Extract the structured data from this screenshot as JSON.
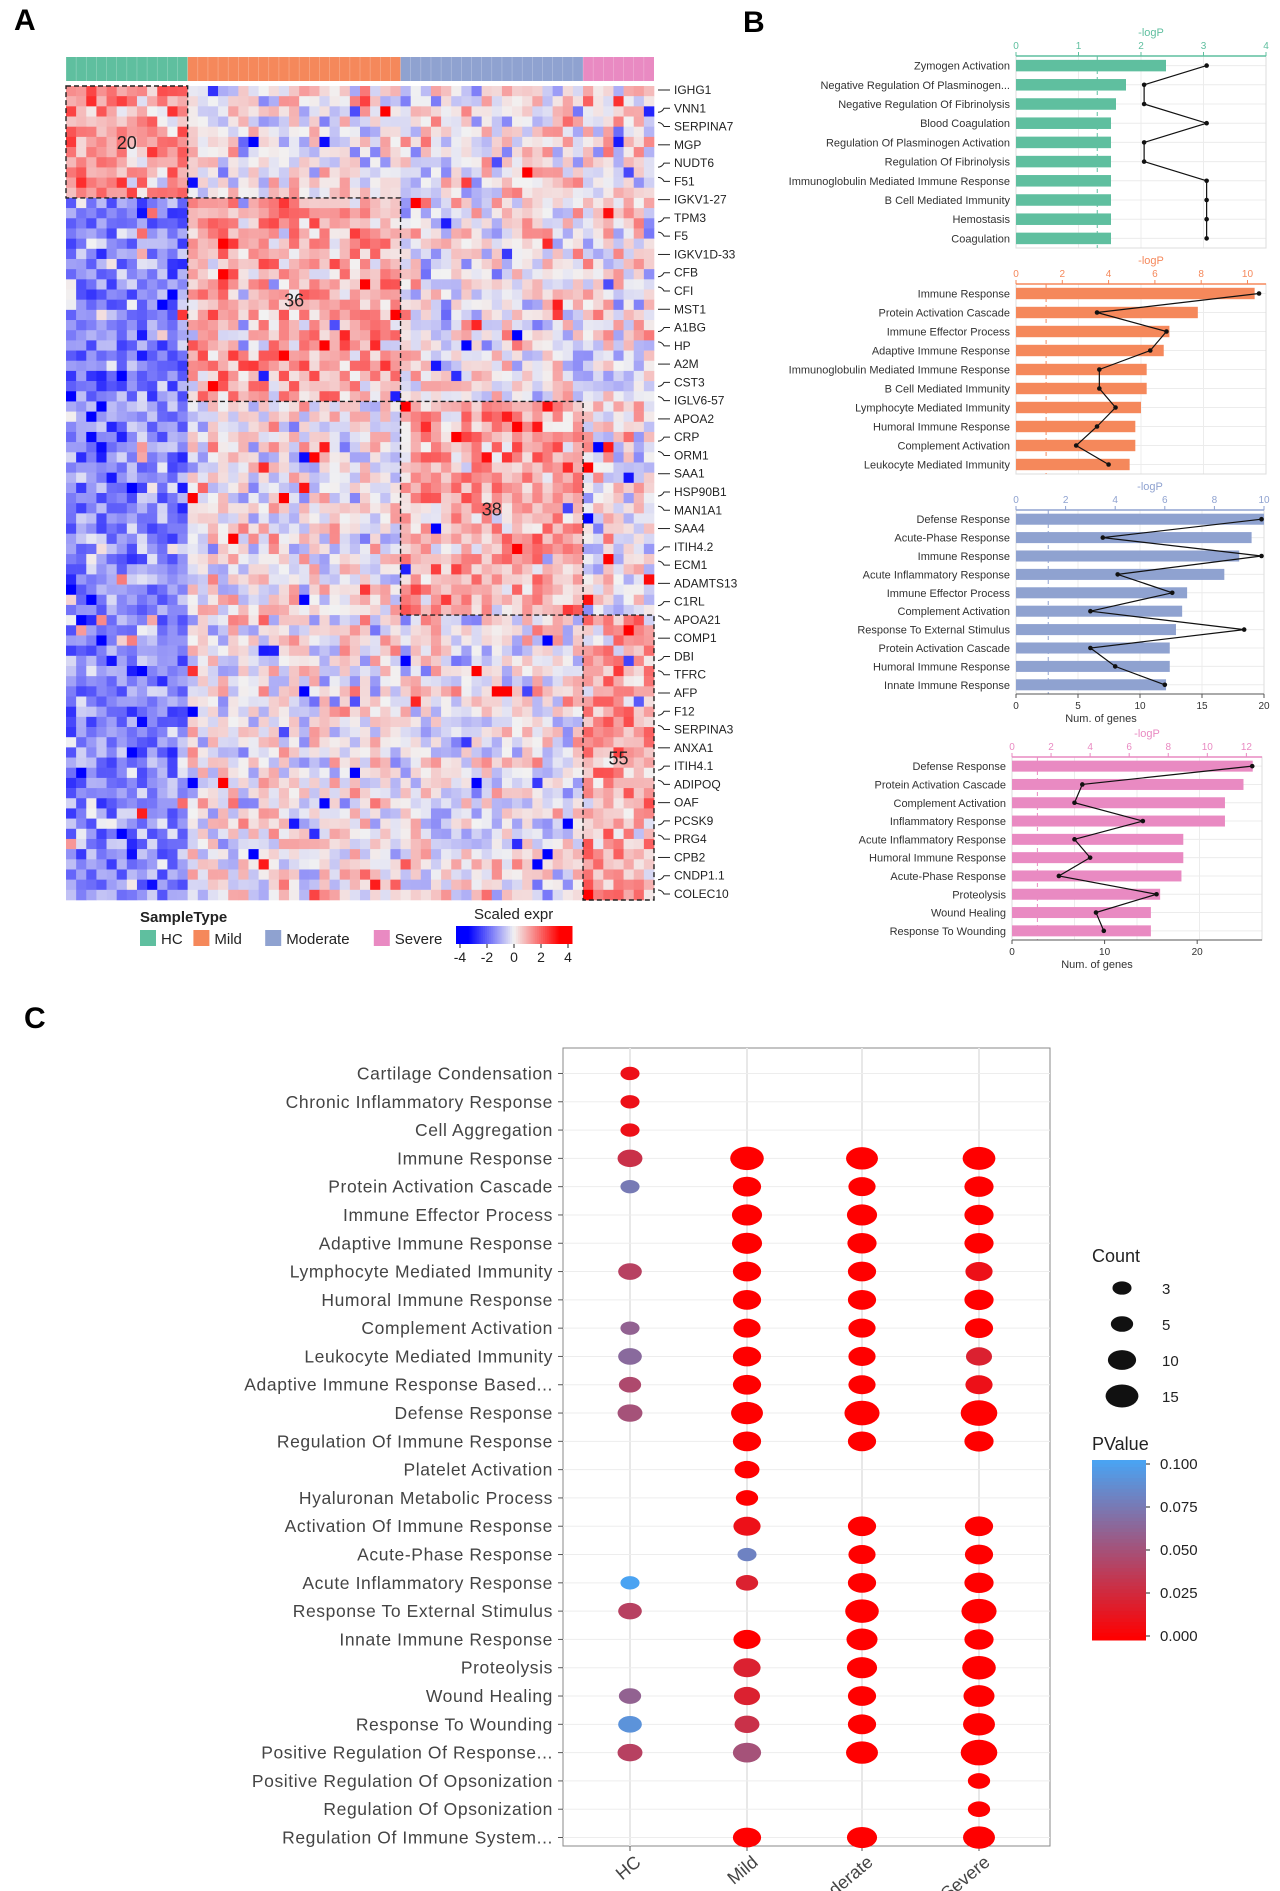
{
  "panels": {
    "a": "A",
    "b": "B",
    "c": "C"
  },
  "colors": {
    "HC": "#5fbf9f",
    "Mild": "#f5885b",
    "Moderate": "#8fa2d0",
    "Severe": "#e98ac2",
    "low": "#0000ff",
    "mid": "#f2f2f2",
    "high": "#ff0000",
    "p_low": "#ff0000",
    "p_high": "#4aa3f2"
  },
  "heatmap": {
    "sample_groups": [
      {
        "name": "HC",
        "n": 12
      },
      {
        "name": "Mild",
        "n": 21
      },
      {
        "name": "Moderate",
        "n": 18
      },
      {
        "name": "Severe",
        "n": 7
      }
    ],
    "n_genes": 80,
    "clusters": [
      {
        "label": "20",
        "groups": [
          "HC"
        ],
        "gene_rows": [
          0,
          11
        ]
      },
      {
        "label": "36",
        "groups": [
          "Mild"
        ],
        "gene_rows": [
          11,
          31
        ]
      },
      {
        "label": "38",
        "groups": [
          "Moderate"
        ],
        "gene_rows": [
          31,
          52
        ]
      },
      {
        "label": "55",
        "groups": [
          "Severe"
        ],
        "gene_rows": [
          52,
          80
        ]
      }
    ],
    "gene_labels": [
      "IGHG1",
      "VNN1",
      "SERPINA7",
      "MGP",
      "NUDT6",
      "F51",
      "IGKV1-27",
      "TPM3",
      "F5",
      "IGKV1D-33",
      "CFB",
      "CFI",
      "MST1",
      "A1BG",
      "HP",
      "A2M",
      "CST3",
      "IGLV6-57",
      "APOA2",
      "CRP",
      "ORM1",
      "SAA1",
      "HSP90B1",
      "MAN1A1",
      "SAA4",
      "ITIH4.2",
      "ECM1",
      "ADAMTS13",
      "C1RL",
      "APOA21",
      "COMP1",
      "DBI",
      "TFRC",
      "AFP",
      "F12",
      "SERPINA3",
      "ANXA1",
      "ITIH4.1",
      "ADIPOQ",
      "OAF",
      "PCSK9",
      "PRG4",
      "CPB2",
      "CNDP1.1",
      "COLEC10"
    ],
    "legend_sample_title": "SampleType",
    "legend_expr_title": "Scaled expr",
    "legend_expr_ticks": [
      "-4",
      "-2",
      "0",
      "2",
      "4"
    ]
  },
  "chart_data": [
    {
      "type": "bar",
      "group": "HC",
      "top_axis_label": "-logP",
      "top_ticks": [
        0,
        1,
        2,
        3,
        4
      ],
      "xlim_genes": [
        0,
        5
      ],
      "categories": [
        "Zymogen Activation",
        "Negative Regulation Of Plasminogen...",
        "Negative Regulation Of Fibrinolysis",
        "Blood Coagulation",
        "Regulation Of Plasminogen Activation",
        "Regulation Of Fibrinolysis",
        "Immunoglobulin Mediated Immune Response",
        "B Cell Mediated Immunity",
        "Hemostasis",
        "Coagulation"
      ],
      "genes": [
        3,
        2.2,
        2,
        1.9,
        1.9,
        1.9,
        1.9,
        1.9,
        1.9,
        1.9
      ],
      "logp": [
        3.05,
        2.05,
        2.05,
        3.05,
        2.05,
        2.05,
        3.05,
        3.05,
        3.05,
        3.05
      ]
    },
    {
      "type": "bar",
      "group": "Mild",
      "top_axis_label": "-logP",
      "top_ticks": [
        0,
        2,
        4,
        6,
        8,
        10
      ],
      "xlim_genes": [
        0,
        22
      ],
      "categories": [
        "Immune Response",
        "Protein Activation Cascade",
        "Immune Effector Process",
        "Adaptive Immune Response",
        "Immunoglobulin Mediated Immune Response",
        "B Cell Mediated Immunity",
        "Lymphocyte Mediated Immunity",
        "Humoral Immune Response",
        "Complement Activation",
        "Leukocyte Mediated Immunity"
      ],
      "genes": [
        21,
        16,
        13.5,
        13,
        11.5,
        11.5,
        11,
        10.5,
        10.5,
        10
      ],
      "logp": [
        10.5,
        3.5,
        6.5,
        5.8,
        3.6,
        3.6,
        4.3,
        3.5,
        2.6,
        4.0
      ]
    },
    {
      "type": "bar",
      "group": "Moderate",
      "top_axis_label": "-logP",
      "top_ticks": [
        0,
        2,
        4,
        6,
        8,
        10
      ],
      "x_ticks": [
        0,
        5,
        10,
        15,
        20
      ],
      "xlabel": "Num. of genes",
      "xlim_genes": [
        0,
        20
      ],
      "categories": [
        "Defense Response",
        "Acute-Phase Response",
        "Immune Response",
        "Acute Inflammatory Response",
        "Immune Effector Process",
        "Complement Activation",
        "Response To External Stimulus",
        "Protein Activation Cascade",
        "Humoral Immune Response",
        "Innate Immune Response"
      ],
      "genes": [
        20,
        19,
        18,
        16.8,
        13.8,
        13.4,
        12.9,
        12.4,
        12.4,
        12.1
      ],
      "logp": [
        9.9,
        3.5,
        9.9,
        4.1,
        6.3,
        3.0,
        9.2,
        3.0,
        4.0,
        6.0
      ]
    },
    {
      "type": "bar",
      "group": "Severe",
      "top_axis_label": "-logP",
      "top_ticks": [
        0,
        2,
        4,
        6,
        8,
        10,
        12
      ],
      "x_ticks": [
        0,
        10,
        20
      ],
      "xlabel": "Num. of genes",
      "xlim_genes": [
        0,
        27
      ],
      "categories": [
        "Defense Response",
        "Protein Activation Cascade",
        "Complement Activation",
        "Inflammatory Response",
        "Acute Inflammatory Response",
        "Humoral Immune Response",
        "Acute-Phase Response",
        "Proteolysis",
        "Wound Healing",
        "Response To Wounding"
      ],
      "genes": [
        26,
        25,
        23,
        23,
        18.5,
        18.5,
        18.3,
        16,
        15,
        15
      ],
      "logp": [
        12.3,
        3.6,
        3.2,
        6.7,
        3.2,
        4.0,
        2.4,
        7.4,
        4.3,
        4.7
      ]
    },
    {
      "type": "scatter",
      "legend_count_title": "Count",
      "legend_count_values": [
        3,
        5,
        10,
        15
      ],
      "legend_p_title": "PValue",
      "legend_p_ticks": [
        "0.100",
        "0.075",
        "0.050",
        "0.025",
        "0.000"
      ],
      "x": [
        "HC",
        "Mild",
        "Moderate",
        "Severe"
      ],
      "terms": [
        "Cartilage Condensation",
        "Chronic Inflammatory Response",
        "Cell Aggregation",
        "Immune Response",
        "Protein Activation Cascade",
        "Immune Effector Process",
        "Adaptive Immune Response",
        "Lymphocyte Mediated Immunity",
        "Humoral Immune Response",
        "Complement Activation",
        "Leukocyte Mediated Immunity",
        "Adaptive Immune Response Based...",
        "Defense Response",
        "Regulation Of Immune Response",
        "Platelet Activation",
        "Hyaluronan Metabolic Process",
        "Activation Of Immune Response",
        "Acute-Phase Response",
        "Acute Inflammatory Response",
        "Response To External Stimulus",
        "Innate Immune Response",
        "Proteolysis",
        "Wound Healing",
        "Response To Wounding",
        "Positive Regulation Of Response...",
        "Positive Regulation Of Opsonization",
        "Regulation Of Opsonization",
        "Regulation Of Immune System..."
      ],
      "points": [
        [
          0,
          0,
          3,
          0.01
        ],
        [
          1,
          0,
          3,
          0.01
        ],
        [
          2,
          0,
          3,
          0.01
        ],
        [
          3,
          0,
          7,
          0.03
        ],
        [
          3,
          1,
          16,
          0.0
        ],
        [
          3,
          2,
          14,
          0.0
        ],
        [
          3,
          3,
          15,
          0.0
        ],
        [
          4,
          0,
          3,
          0.075
        ],
        [
          4,
          1,
          10,
          0.0
        ],
        [
          4,
          2,
          9,
          0.0
        ],
        [
          4,
          3,
          11,
          0.0
        ],
        [
          5,
          1,
          12,
          0.0
        ],
        [
          5,
          2,
          12,
          0.0
        ],
        [
          5,
          3,
          11,
          0.0
        ],
        [
          6,
          1,
          12,
          0.0
        ],
        [
          6,
          2,
          11,
          0.0
        ],
        [
          6,
          3,
          11,
          0.0
        ],
        [
          7,
          0,
          6,
          0.04
        ],
        [
          7,
          1,
          10,
          0.0
        ],
        [
          7,
          2,
          10,
          0.0
        ],
        [
          7,
          3,
          9,
          0.01
        ],
        [
          8,
          1,
          10,
          0.0
        ],
        [
          8,
          2,
          10,
          0.0
        ],
        [
          8,
          3,
          11,
          0.0
        ],
        [
          9,
          0,
          3,
          0.06
        ],
        [
          9,
          1,
          9,
          0.0
        ],
        [
          9,
          2,
          9,
          0.0
        ],
        [
          9,
          3,
          10,
          0.0
        ],
        [
          10,
          0,
          6,
          0.065
        ],
        [
          10,
          1,
          10,
          0.0
        ],
        [
          10,
          2,
          9,
          0.0
        ],
        [
          10,
          3,
          8,
          0.02
        ],
        [
          11,
          0,
          5,
          0.045
        ],
        [
          11,
          1,
          10,
          0.0
        ],
        [
          11,
          2,
          9,
          0.0
        ],
        [
          11,
          3,
          9,
          0.01
        ],
        [
          12,
          0,
          7,
          0.05
        ],
        [
          12,
          1,
          14,
          0.0
        ],
        [
          12,
          2,
          18,
          0.0
        ],
        [
          12,
          3,
          20,
          0.0
        ],
        [
          13,
          1,
          10,
          0.0
        ],
        [
          13,
          2,
          10,
          0.0
        ],
        [
          13,
          3,
          11,
          0.0
        ],
        [
          14,
          1,
          7,
          0.0
        ],
        [
          15,
          1,
          5,
          0.0
        ],
        [
          16,
          1,
          9,
          0.01
        ],
        [
          16,
          2,
          10,
          0.0
        ],
        [
          16,
          3,
          10,
          0.0
        ],
        [
          17,
          1,
          3,
          0.08
        ],
        [
          17,
          2,
          9,
          0.0
        ],
        [
          17,
          3,
          10,
          0.0
        ],
        [
          18,
          0,
          3,
          0.1
        ],
        [
          18,
          1,
          5,
          0.02
        ],
        [
          18,
          2,
          10,
          0.0
        ],
        [
          18,
          3,
          11,
          0.0
        ],
        [
          19,
          0,
          6,
          0.04
        ],
        [
          19,
          2,
          16,
          0.0
        ],
        [
          19,
          3,
          18,
          0.0
        ],
        [
          20,
          1,
          9,
          0.0
        ],
        [
          20,
          2,
          13,
          0.0
        ],
        [
          20,
          3,
          11,
          0.0
        ],
        [
          21,
          1,
          9,
          0.02
        ],
        [
          21,
          2,
          12,
          0.0
        ],
        [
          21,
          3,
          16,
          0.0
        ],
        [
          22,
          0,
          5,
          0.06
        ],
        [
          22,
          1,
          8,
          0.02
        ],
        [
          22,
          2,
          10,
          0.0
        ],
        [
          22,
          3,
          13,
          0.0
        ],
        [
          23,
          0,
          6,
          0.09
        ],
        [
          23,
          1,
          7,
          0.03
        ],
        [
          23,
          2,
          10,
          0.0
        ],
        [
          23,
          3,
          14,
          0.0
        ],
        [
          24,
          0,
          7,
          0.04
        ],
        [
          24,
          1,
          10,
          0.05
        ],
        [
          24,
          2,
          14,
          0.0
        ],
        [
          24,
          3,
          20,
          0.0
        ],
        [
          25,
          3,
          5,
          0.0
        ],
        [
          26,
          3,
          5,
          0.0
        ],
        [
          27,
          1,
          10,
          0.0
        ],
        [
          27,
          2,
          12,
          0.0
        ],
        [
          27,
          3,
          14,
          0.0
        ]
      ]
    }
  ]
}
